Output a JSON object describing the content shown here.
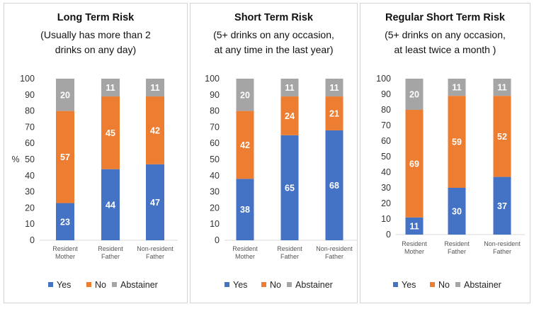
{
  "chart_data": [
    {
      "type": "bar",
      "stacked": true,
      "title": "Long Term Risk",
      "subtitle": [
        "(Usually has more than 2",
        "drinks on any day)"
      ],
      "ylabel": "%",
      "ylim": [
        0,
        100
      ],
      "yticks": [
        0,
        10,
        20,
        30,
        40,
        50,
        60,
        70,
        80,
        90,
        100
      ],
      "grid": false,
      "legend_position": "bottom",
      "categories": [
        [
          "Resident",
          "Mother"
        ],
        [
          "Resident",
          "Father"
        ],
        [
          "Non-resident",
          "Father"
        ]
      ],
      "series": [
        {
          "name": "Yes",
          "values": [
            23,
            44,
            47
          ]
        },
        {
          "name": "No",
          "values": [
            57,
            45,
            42
          ]
        },
        {
          "name": "Abstainer",
          "values": [
            20,
            11,
            11
          ]
        }
      ]
    },
    {
      "type": "bar",
      "stacked": true,
      "title": "Short Term Risk",
      "subtitle": [
        "(5+ drinks on any occasion,",
        "at any time in the last year)"
      ],
      "ylabel": "",
      "ylim": [
        0,
        100
      ],
      "yticks": [
        0,
        10,
        20,
        30,
        40,
        50,
        60,
        70,
        80,
        90,
        100
      ],
      "grid": false,
      "legend_position": "bottom",
      "categories": [
        [
          "Resident",
          "Mother"
        ],
        [
          "Resident",
          "Father"
        ],
        [
          "Non-resident",
          "Father"
        ]
      ],
      "series": [
        {
          "name": "Yes",
          "values": [
            38,
            65,
            68
          ]
        },
        {
          "name": "No",
          "values": [
            42,
            24,
            21
          ]
        },
        {
          "name": "Abstainer",
          "values": [
            20,
            11,
            11
          ]
        }
      ]
    },
    {
      "type": "bar",
      "stacked": true,
      "title": "Regular Short Term Risk",
      "subtitle": [
        "(5+ drinks on any occasion,",
        "at least twice a month )"
      ],
      "ylabel": "",
      "ylim": [
        0,
        100
      ],
      "yticks": [
        0,
        10,
        20,
        30,
        40,
        50,
        60,
        70,
        80,
        90,
        100
      ],
      "grid": false,
      "legend_position": "bottom",
      "categories": [
        [
          "Resident",
          "Mother"
        ],
        [
          "Resident",
          "Father"
        ],
        [
          "Non-resident",
          "Father"
        ]
      ],
      "series": [
        {
          "name": "Yes",
          "values": [
            11,
            30,
            37
          ]
        },
        {
          "name": "No",
          "values": [
            69,
            59,
            52
          ]
        },
        {
          "name": "Abstainer",
          "values": [
            20,
            11,
            11
          ]
        }
      ]
    }
  ],
  "colors": {
    "Yes": "#4472c4",
    "No": "#ed7d31",
    "Abstainer": "#a5a5a5"
  }
}
